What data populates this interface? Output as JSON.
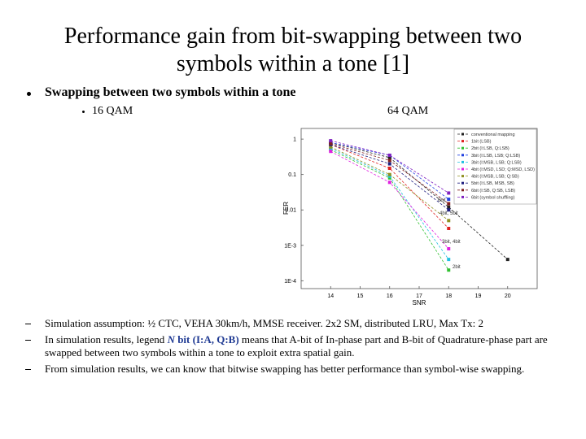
{
  "title": "Performance gain from bit-swapping between two symbols within a tone [1]",
  "bullet": "Swapping between two symbols within a tone",
  "sub_labels": [
    "16 QAM",
    "64 QAM"
  ],
  "notes": [
    [
      "Simulation assumption: ½ CTC, VEHA 30km/h, MMSE receiver. 2x2 SM, distributed LRU, Max Tx: 2"
    ],
    [
      "In simulation results, legend ",
      "N",
      " bit (I:A, Q:B)",
      " means that A-bit of In-phase part and B-bit of Quadrature-phase part are swapped between two symbols within a tone to exploit extra spatial gain."
    ],
    [
      "From simulation results, we can know that bitwise swapping  has better performance than symbol-wise swapping."
    ]
  ],
  "chart_data": {
    "type": "line",
    "x_label": "SNR",
    "y_label": "FER",
    "log_y": true,
    "x": [
      14,
      16,
      18,
      20
    ],
    "xlim": [
      13,
      21
    ],
    "xticks": [
      14,
      15,
      16,
      17,
      18,
      19,
      20
    ],
    "ylim": [
      6e-05,
      2
    ],
    "yticks": [
      1,
      0.1,
      0.01,
      {
        "value": 0.001,
        "label": "1E-3"
      },
      {
        "value": 0.0001,
        "label": "1E-4"
      }
    ],
    "annotations": [
      "6bit",
      "4bit, 5bit",
      "3bit, 4bit",
      "2bit"
    ],
    "series": [
      {
        "name": "conventional mapping",
        "color": "#222222",
        "values": [
          0.8,
          0.3,
          0.012,
          0.0004
        ]
      },
      {
        "name": "1bit (LSB)",
        "color": "#e02020",
        "values": [
          0.7,
          0.15,
          0.003,
          null
        ]
      },
      {
        "name": "2bit (I:LSB, Q:LSB)",
        "color": "#30c030",
        "values": [
          0.5,
          0.08,
          0.0002,
          null
        ]
      },
      {
        "name": "3bit (I:LSB, LSB; Q:LSB)",
        "color": "#2040e0",
        "values": [
          0.8,
          0.35,
          0.02,
          null
        ]
      },
      {
        "name": "3bit (I:MSB, LSB; Q:LSB)",
        "color": "#20c0e0",
        "values": [
          0.55,
          0.09,
          0.0004,
          null
        ]
      },
      {
        "name": "4bit (I:MSD, LSD; Q:MSD, LSD)",
        "color": "#e020e0",
        "values": [
          0.45,
          0.06,
          0.0008,
          null
        ]
      },
      {
        "name": "4bit (I:MSB, LSB; Q:SB)",
        "color": "#909020",
        "values": [
          0.6,
          0.1,
          0.005,
          null
        ]
      },
      {
        "name": "5bit (I:LSB, MSB, SB)",
        "color": "#202080",
        "values": [
          0.7,
          0.2,
          0.01,
          null
        ]
      },
      {
        "name": "6bit (I:SB, Q:SB, LSB)",
        "color": "#802020",
        "values": [
          0.75,
          0.25,
          0.015,
          null
        ]
      },
      {
        "name": "6bit (symbol shuffling)",
        "color": "#8020c0",
        "values": [
          0.9,
          0.35,
          0.03,
          null
        ]
      }
    ]
  }
}
